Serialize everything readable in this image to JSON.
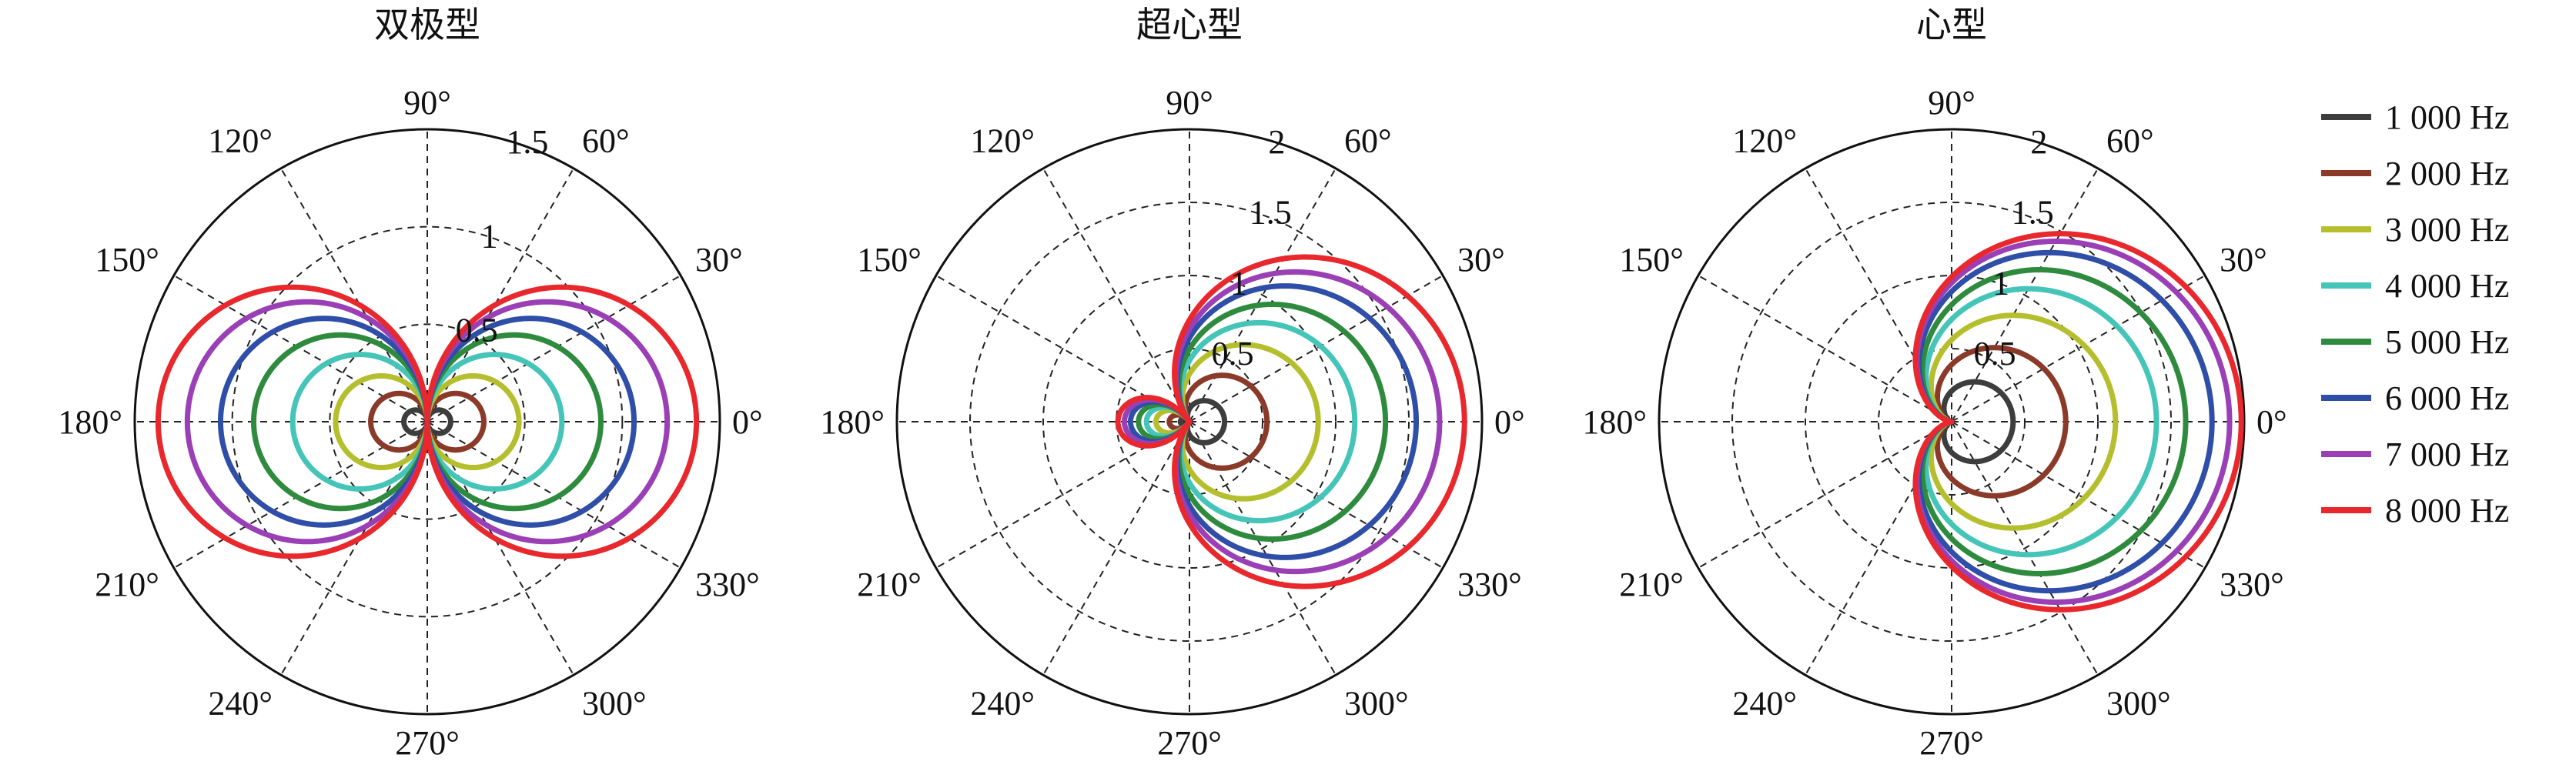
{
  "chart_data": [
    {
      "type": "polar-line",
      "title": "双极型",
      "angle_labels": [
        "0°",
        "30°",
        "60°",
        "90°",
        "120°",
        "150°",
        "180°",
        "210°",
        "240°",
        "270°",
        "300°",
        "330°"
      ],
      "r_ticks": [
        0.5,
        1,
        1.5
      ],
      "r_tick_labels": [
        "0.5",
        "1",
        "1.5"
      ],
      "rmax": 1.5,
      "pattern": "r = A·|cos θ|",
      "series": [
        {
          "name": "1 000 Hz",
          "peak_r": 0.12
        },
        {
          "name": "2 000 Hz",
          "peak_r": 0.29
        },
        {
          "name": "3 000 Hz",
          "peak_r": 0.47
        },
        {
          "name": "4 000 Hz",
          "peak_r": 0.69
        },
        {
          "name": "5 000 Hz",
          "peak_r": 0.89
        },
        {
          "name": "6 000 Hz",
          "peak_r": 1.06
        },
        {
          "name": "7 000 Hz",
          "peak_r": 1.23
        },
        {
          "name": "8 000 Hz",
          "peak_r": 1.38
        }
      ]
    },
    {
      "type": "polar-line",
      "title": "超心型",
      "angle_labels": [
        "0°",
        "30°",
        "60°",
        "90°",
        "120°",
        "150°",
        "180°",
        "210°",
        "240°",
        "270°",
        "300°",
        "330°"
      ],
      "r_ticks": [
        0.5,
        1,
        1.5,
        2
      ],
      "r_tick_labels": [
        "0.5",
        "1",
        "1.5",
        "2"
      ],
      "rmax": 2,
      "pattern": "r = A·|0.37 + 0.63 cos θ|",
      "series": [
        {
          "name": "1 000 Hz",
          "peak_r": 0.24
        },
        {
          "name": "2 000 Hz",
          "peak_r": 0.53
        },
        {
          "name": "3 000 Hz",
          "peak_r": 0.88
        },
        {
          "name": "4 000 Hz",
          "peak_r": 1.13
        },
        {
          "name": "5 000 Hz",
          "peak_r": 1.34
        },
        {
          "name": "6 000 Hz",
          "peak_r": 1.55
        },
        {
          "name": "7 000 Hz",
          "peak_r": 1.71
        },
        {
          "name": "8 000 Hz",
          "peak_r": 1.88
        }
      ]
    },
    {
      "type": "polar-line",
      "title": "心型",
      "angle_labels": [
        "0°",
        "30°",
        "60°",
        "90°",
        "120°",
        "150°",
        "180°",
        "210°",
        "240°",
        "270°",
        "300°",
        "330°"
      ],
      "r_ticks": [
        0.5,
        1,
        1.5,
        2
      ],
      "r_tick_labels": [
        "0.5",
        "1",
        "1.5",
        "2"
      ],
      "rmax": 2,
      "pattern": "r = A·(1 + cos θ)/2",
      "series": [
        {
          "name": "1 000 Hz",
          "peak_r": 0.42
        },
        {
          "name": "2 000 Hz",
          "peak_r": 0.78
        },
        {
          "name": "3 000 Hz",
          "peak_r": 1.12
        },
        {
          "name": "4 000 Hz",
          "peak_r": 1.4
        },
        {
          "name": "5 000 Hz",
          "peak_r": 1.6
        },
        {
          "name": "6 000 Hz",
          "peak_r": 1.78
        },
        {
          "name": "7 000 Hz",
          "peak_r": 1.9
        },
        {
          "name": "8 000 Hz",
          "peak_r": 1.98
        }
      ]
    }
  ],
  "legend": {
    "placement": "right",
    "entries": [
      {
        "label": "1 000 Hz",
        "color": "#3d3d3d"
      },
      {
        "label": "2 000 Hz",
        "color": "#8b3a2a"
      },
      {
        "label": "3 000 Hz",
        "color": "#b5bf2e"
      },
      {
        "label": "4 000 Hz",
        "color": "#45c4b8"
      },
      {
        "label": "5 000 Hz",
        "color": "#2e8b3e"
      },
      {
        "label": "6 000 Hz",
        "color": "#2f4ea8"
      },
      {
        "label": "7 000 Hz",
        "color": "#9a3fb5"
      },
      {
        "label": "8 000 Hz",
        "color": "#e8282c"
      }
    ]
  }
}
